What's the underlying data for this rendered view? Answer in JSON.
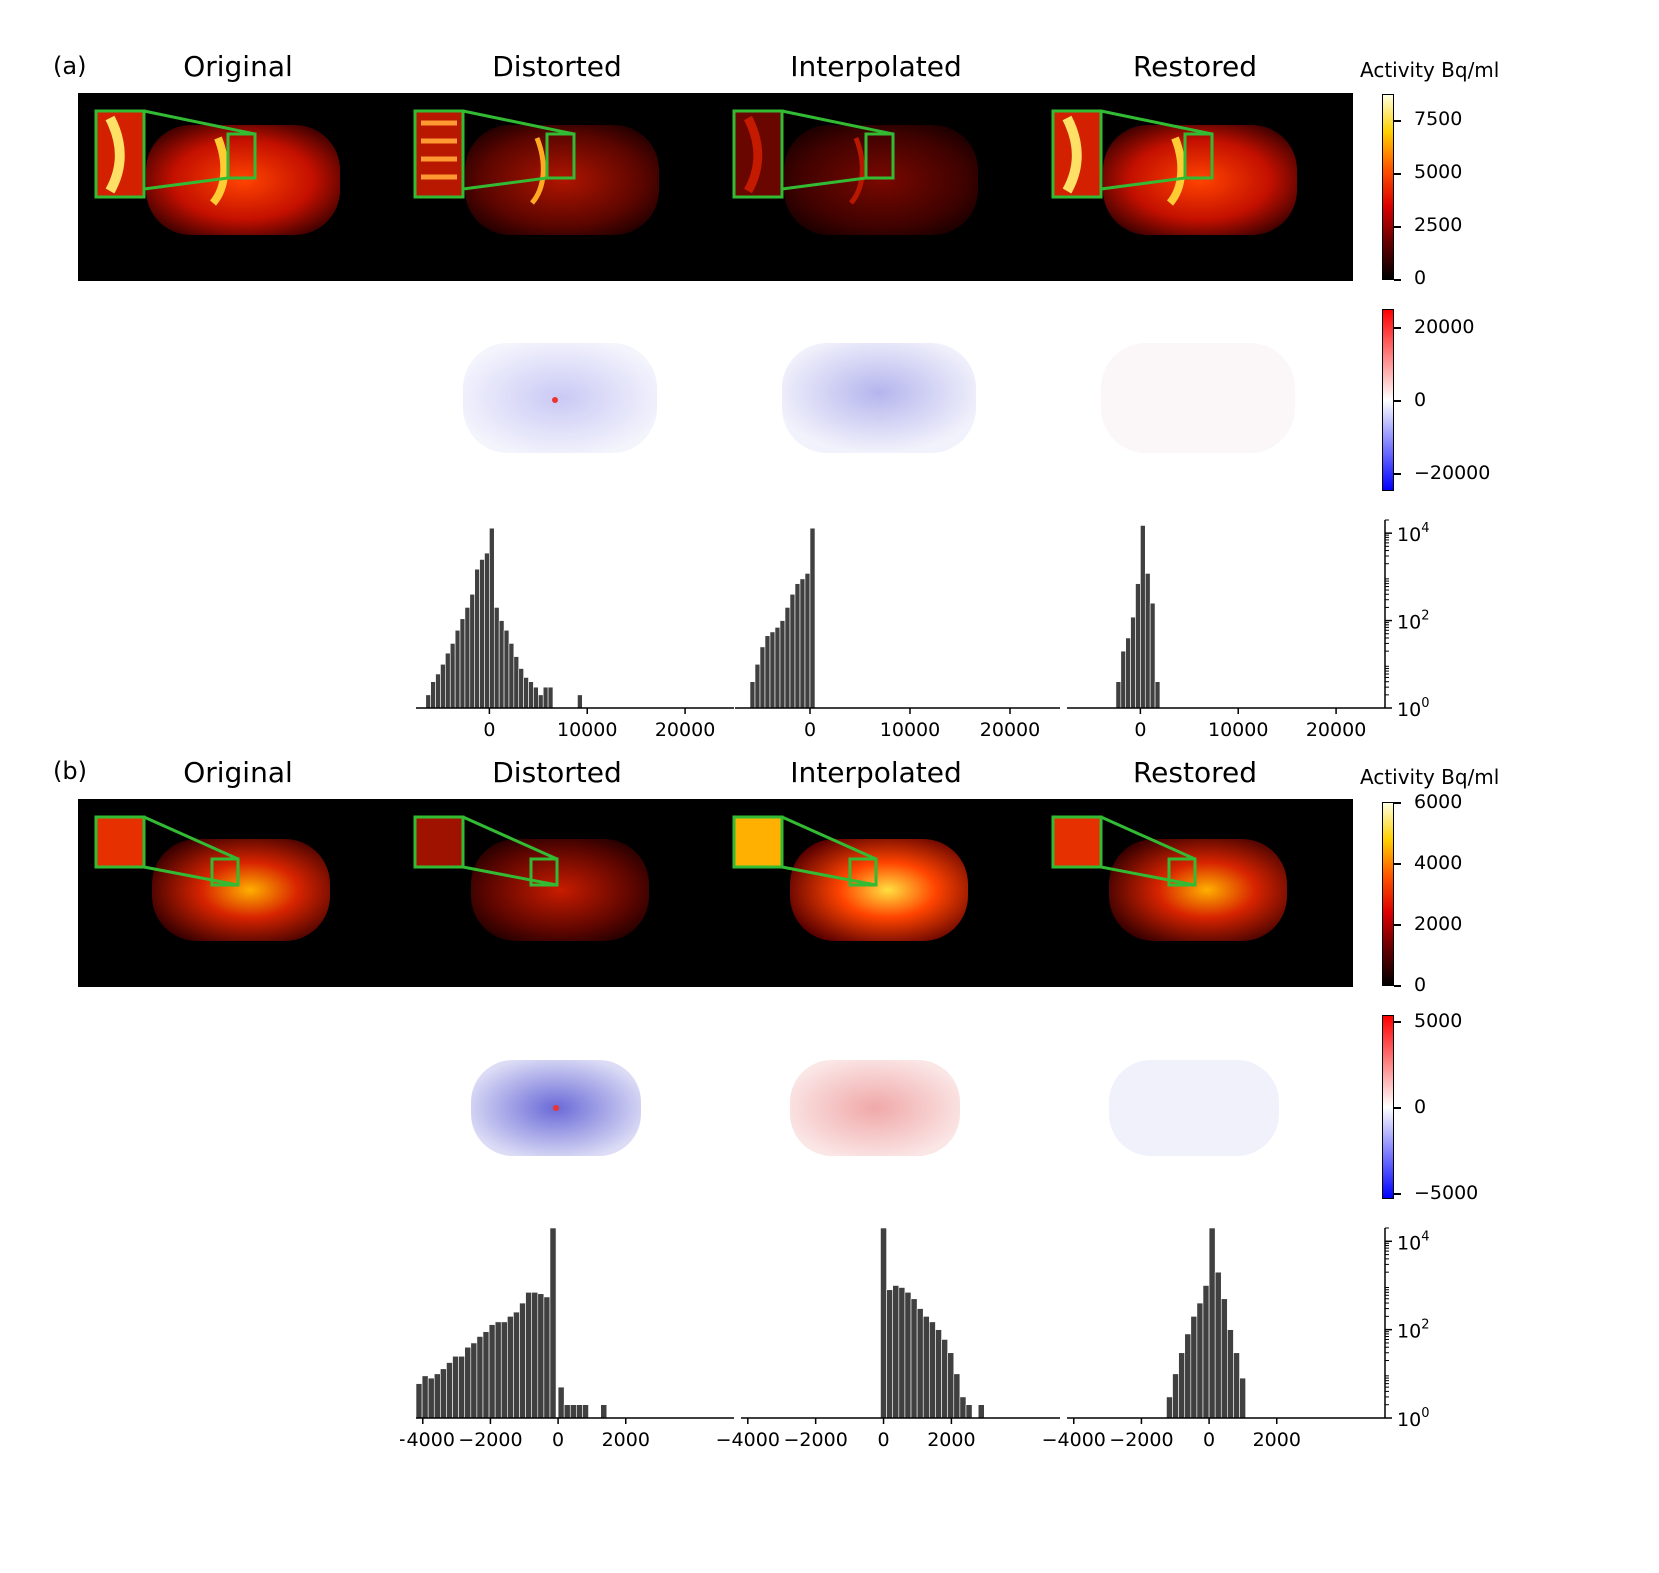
{
  "panels": [
    {
      "label": "(a)",
      "column_titles": [
        "Original",
        "Distorted",
        "Interpolated",
        "Restored"
      ],
      "activity_colorbar": {
        "title": "Activity Bq/ml",
        "ticks": [
          "7500",
          "5000",
          "2500",
          "0"
        ],
        "cmap": "hot"
      },
      "difference_colorbar": {
        "ticks": [
          "20000",
          "0",
          "−20000"
        ],
        "cmap": "bwr"
      },
      "histogram_axis": {
        "y_ticks": [
          "10",
          "10",
          "10"
        ],
        "y_tick_exponents": [
          "4",
          "2",
          "0"
        ]
      }
    },
    {
      "label": "(b)",
      "column_titles": [
        "Original",
        "Distorted",
        "Interpolated",
        "Restored"
      ],
      "activity_colorbar": {
        "title": "Activity Bq/ml",
        "ticks": [
          "6000",
          "4000",
          "2000",
          "0"
        ],
        "cmap": "hot"
      },
      "difference_colorbar": {
        "ticks": [
          "5000",
          "0",
          "−5000"
        ],
        "cmap": "bwr"
      },
      "histogram_axis": {
        "y_ticks": [
          "10",
          "10",
          "10"
        ],
        "y_tick_exponents": [
          "4",
          "2",
          "0"
        ]
      }
    }
  ],
  "colors": {
    "inset_box": "#33bb33",
    "bar": "#404040"
  },
  "chart_data": [
    {
      "type": "bar",
      "panel": "(a)",
      "column": "Distorted",
      "yscale": "log",
      "ylim": [
        1,
        20000
      ],
      "xlim": [
        -7500,
        25000
      ],
      "x_ticks": [
        "0",
        "10000",
        "20000"
      ],
      "x_tick_values": [
        0,
        10000,
        20000
      ],
      "bin_width": 500,
      "bin_starts": [
        -6500,
        -6000,
        -5500,
        -5000,
        -4500,
        -4000,
        -3500,
        -3000,
        -2500,
        -2000,
        -1500,
        -1000,
        -500,
        0,
        500,
        1000,
        1500,
        2000,
        2500,
        3000,
        3500,
        4000,
        4500,
        5000,
        5500,
        6000,
        9000
      ],
      "counts": [
        2,
        4,
        6,
        10,
        18,
        30,
        60,
        110,
        200,
        400,
        1500,
        2500,
        3500,
        13000,
        200,
        100,
        60,
        30,
        15,
        8,
        5,
        4,
        3,
        2,
        3,
        3,
        2
      ]
    },
    {
      "type": "bar",
      "panel": "(a)",
      "column": "Interpolated",
      "yscale": "log",
      "ylim": [
        1,
        20000
      ],
      "xlim": [
        -7500,
        25000
      ],
      "x_ticks": [
        "0",
        "10000",
        "20000"
      ],
      "x_tick_values": [
        0,
        10000,
        20000
      ],
      "bin_width": 500,
      "bin_starts": [
        -6000,
        -5500,
        -5000,
        -4500,
        -4000,
        -3500,
        -3000,
        -2500,
        -2000,
        -1500,
        -1000,
        -500,
        0
      ],
      "counts": [
        4,
        10,
        25,
        45,
        55,
        70,
        100,
        200,
        400,
        700,
        900,
        1200,
        13000
      ]
    },
    {
      "type": "bar",
      "panel": "(a)",
      "column": "Restored",
      "yscale": "log",
      "ylim": [
        1,
        20000
      ],
      "xlim": [
        -7500,
        25000
      ],
      "x_ticks": [
        "0",
        "10000",
        "20000"
      ],
      "x_tick_values": [
        0,
        10000,
        20000
      ],
      "bin_width": 500,
      "bin_starts": [
        -2500,
        -2000,
        -1500,
        -1000,
        -500,
        0,
        500,
        1000,
        1500
      ],
      "counts": [
        4,
        20,
        40,
        120,
        700,
        15000,
        1200,
        250,
        4
      ]
    },
    {
      "type": "bar",
      "panel": "(b)",
      "column": "Distorted",
      "yscale": "log",
      "ylim": [
        1,
        20000
      ],
      "xlim": [
        -4200,
        5200
      ],
      "x_ticks": [
        "−4000",
        "−2000",
        "0",
        "2000"
      ],
      "x_tick_values": [
        -4000,
        -2000,
        0,
        2000
      ],
      "bin_width": 180,
      "bin_starts": [
        -4200,
        -4020,
        -3840,
        -3660,
        -3480,
        -3300,
        -3120,
        -2940,
        -2760,
        -2580,
        -2400,
        -2220,
        -2040,
        -1860,
        -1680,
        -1500,
        -1320,
        -1140,
        -960,
        -780,
        -600,
        -420,
        -240,
        0,
        180,
        360,
        540,
        720,
        1260
      ],
      "counts": [
        6,
        9,
        8,
        10,
        13,
        18,
        25,
        25,
        40,
        50,
        70,
        90,
        130,
        150,
        150,
        200,
        250,
        400,
        700,
        700,
        650,
        550,
        20000,
        5,
        2,
        2,
        2,
        2,
        2
      ]
    },
    {
      "type": "bar",
      "panel": "(b)",
      "column": "Interpolated",
      "yscale": "log",
      "ylim": [
        1,
        20000
      ],
      "xlim": [
        -4200,
        5200
      ],
      "x_ticks": [
        "−4000",
        "−2000",
        "0",
        "2000"
      ],
      "x_tick_values": [
        -4000,
        -2000,
        0,
        2000
      ],
      "bin_width": 180,
      "bin_starts": [
        -90,
        90,
        270,
        450,
        630,
        810,
        990,
        1170,
        1350,
        1530,
        1710,
        1890,
        2070,
        2250,
        2430,
        2790
      ],
      "counts": [
        20000,
        800,
        1000,
        900,
        700,
        500,
        300,
        200,
        150,
        100,
        60,
        30,
        10,
        3,
        2,
        2
      ]
    },
    {
      "type": "bar",
      "panel": "(b)",
      "column": "Restored",
      "yscale": "log",
      "ylim": [
        1,
        20000
      ],
      "xlim": [
        -4200,
        5200
      ],
      "x_ticks": [
        "−4000",
        "−2000",
        "0",
        "2000"
      ],
      "x_tick_values": [
        -4000,
        -2000,
        0,
        2000
      ],
      "bin_width": 180,
      "bin_starts": [
        -1260,
        -1080,
        -900,
        -720,
        -540,
        -360,
        -180,
        0,
        180,
        360,
        540,
        720,
        900
      ],
      "counts": [
        3,
        10,
        30,
        80,
        200,
        400,
        1000,
        20000,
        2000,
        500,
        100,
        30,
        8
      ]
    }
  ]
}
